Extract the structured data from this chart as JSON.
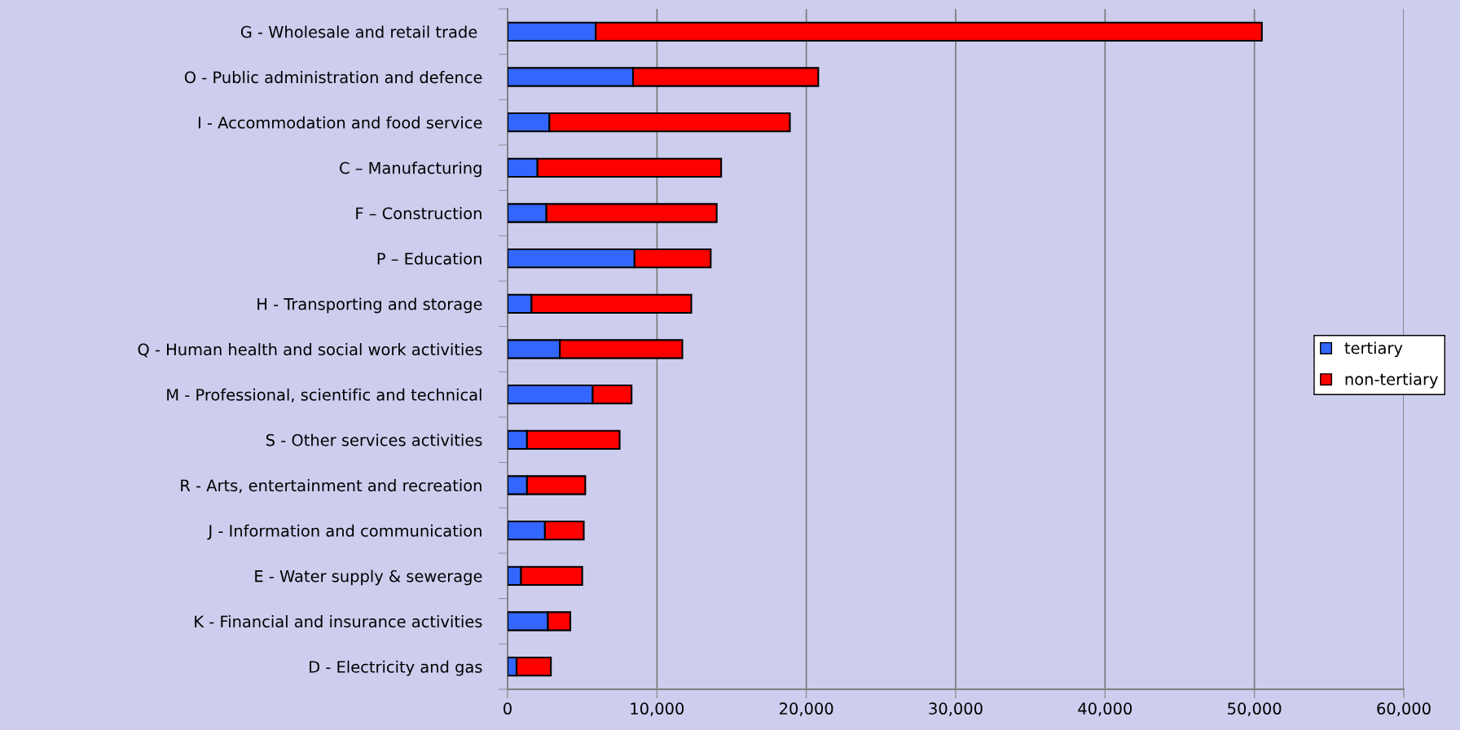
{
  "chart_data": {
    "type": "bar",
    "orientation": "horizontal",
    "stacked": true,
    "categories": [
      "G - Wholesale and retail trade ",
      "O - Public administration and defence",
      "I - Accommodation and food service",
      "C – Manufacturing",
      "F – Construction",
      "P – Education",
      "H - Transporting and storage",
      "Q - Human health and social work activities",
      "M - Professional, scientific and technical",
      "S - Other services activities",
      "R - Arts, entertainment and recreation",
      "J - Information and communication",
      "E - Water supply & sewerage",
      "K - Financial and insurance activities",
      "D - Electricity and gas"
    ],
    "series": [
      {
        "name": "tertiary",
        "color": "#3366ff",
        "values": [
          5900,
          8400,
          2800,
          2000,
          2600,
          8500,
          1600,
          3500,
          5700,
          1300,
          1300,
          2500,
          900,
          2700,
          600
        ]
      },
      {
        "name": "non-tertiary",
        "color": "#ff0000",
        "values": [
          44600,
          12400,
          16100,
          12300,
          11400,
          5100,
          10700,
          8200,
          2600,
          6200,
          3900,
          2600,
          4100,
          1500,
          2300
        ]
      }
    ],
    "xlim": [
      0,
      60000
    ],
    "xticks": [
      {
        "value": 0,
        "label": "0"
      },
      {
        "value": 10000,
        "label": "10,000"
      },
      {
        "value": 20000,
        "label": "20,000"
      },
      {
        "value": 30000,
        "label": "30,000"
      },
      {
        "value": 40000,
        "label": "40,000"
      },
      {
        "value": 50000,
        "label": "50,000"
      },
      {
        "value": 60000,
        "label": "60,000"
      }
    ],
    "grid": "x",
    "legend": "right"
  }
}
